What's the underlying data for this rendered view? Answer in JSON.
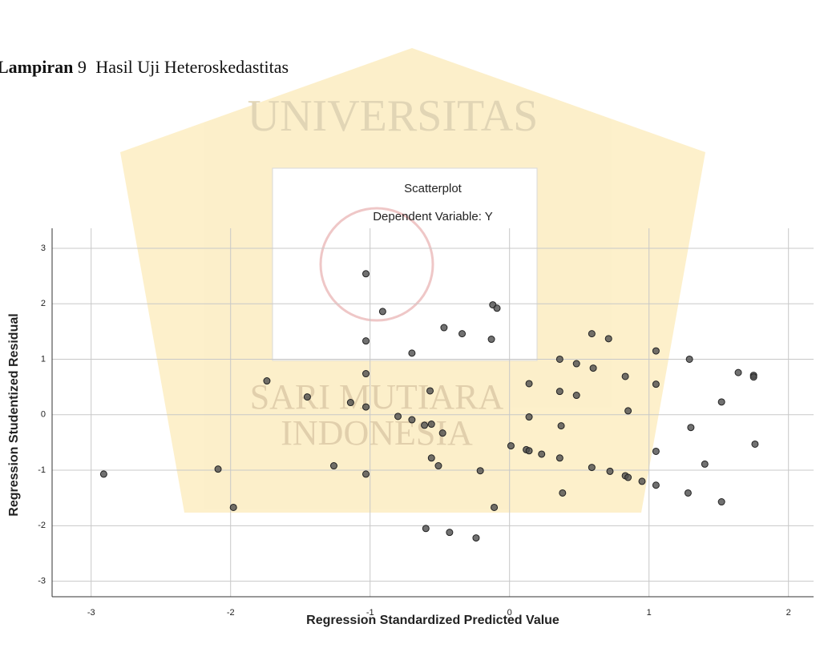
{
  "caption": {
    "label": "Lampiran",
    "number": "9",
    "text": "Hasil Uji Heteroskedastitas"
  },
  "watermark": {
    "arc": "UNIVERSITAS",
    "line1": "SARI MUTIARA",
    "line2": "INDONESIA"
  },
  "chart_data": {
    "type": "scatter",
    "title": "Scatterplot",
    "subtitle": "Dependent Variable: Y",
    "x_label": "Regression Standardized Predicted Value",
    "y_label": "Regression Studentized Residual",
    "color": "#4d4d4d",
    "grid": true,
    "xlim": [
      -3.28,
      2.18
    ],
    "ylim": [
      -3.28,
      3.36
    ],
    "xticks": [
      -3,
      -2,
      -1,
      0,
      1,
      2
    ],
    "yticks": [
      -3,
      -2,
      -1,
      0,
      1,
      2,
      3
    ],
    "x": [
      -2.91,
      -2.09,
      -1.98,
      -1.74,
      -1.45,
      -1.26,
      -1.14,
      -1.03,
      -1.03,
      -1.03,
      -1.03,
      -1.03,
      -0.91,
      -0.8,
      -0.7,
      -0.7,
      -0.61,
      -0.57,
      -0.56,
      -0.6,
      -0.56,
      -0.47,
      -0.43,
      -0.34,
      -0.51,
      -0.48,
      -0.24,
      -0.21,
      -0.13,
      -0.12,
      -0.09,
      -0.11,
      0.01,
      0.14,
      0.14,
      0.12,
      0.14,
      0.23,
      0.36,
      0.36,
      0.37,
      0.36,
      0.38,
      0.48,
      0.48,
      0.59,
      0.6,
      0.59,
      0.71,
      0.72,
      0.83,
      0.85,
      0.83,
      0.85,
      0.95,
      1.05,
      1.05,
      1.05,
      1.05,
      1.29,
      1.3,
      1.28,
      1.4,
      1.52,
      1.52,
      1.64,
      1.75,
      1.76,
      1.75
    ],
    "values": [
      -1.07,
      -0.98,
      -1.67,
      0.61,
      0.32,
      -0.92,
      0.22,
      2.54,
      1.33,
      0.74,
      0.14,
      -1.07,
      1.86,
      -0.03,
      1.11,
      -0.09,
      -0.19,
      0.43,
      -0.17,
      -2.05,
      -0.78,
      1.57,
      -2.12,
      1.46,
      -0.92,
      -0.33,
      -2.22,
      -1.01,
      1.36,
      1.98,
      1.92,
      -1.67,
      -0.56,
      0.56,
      -0.04,
      -0.63,
      -0.65,
      -0.71,
      1.0,
      0.42,
      -0.2,
      -0.78,
      -1.41,
      0.92,
      0.35,
      1.46,
      0.84,
      -0.95,
      1.37,
      -1.02,
      0.69,
      0.07,
      -1.1,
      -1.13,
      -1.2,
      1.15,
      0.55,
      -0.66,
      -1.27,
      1.0,
      -0.23,
      -1.41,
      -0.89,
      0.23,
      -1.57,
      0.76,
      0.71,
      -0.53,
      0.68
    ]
  }
}
